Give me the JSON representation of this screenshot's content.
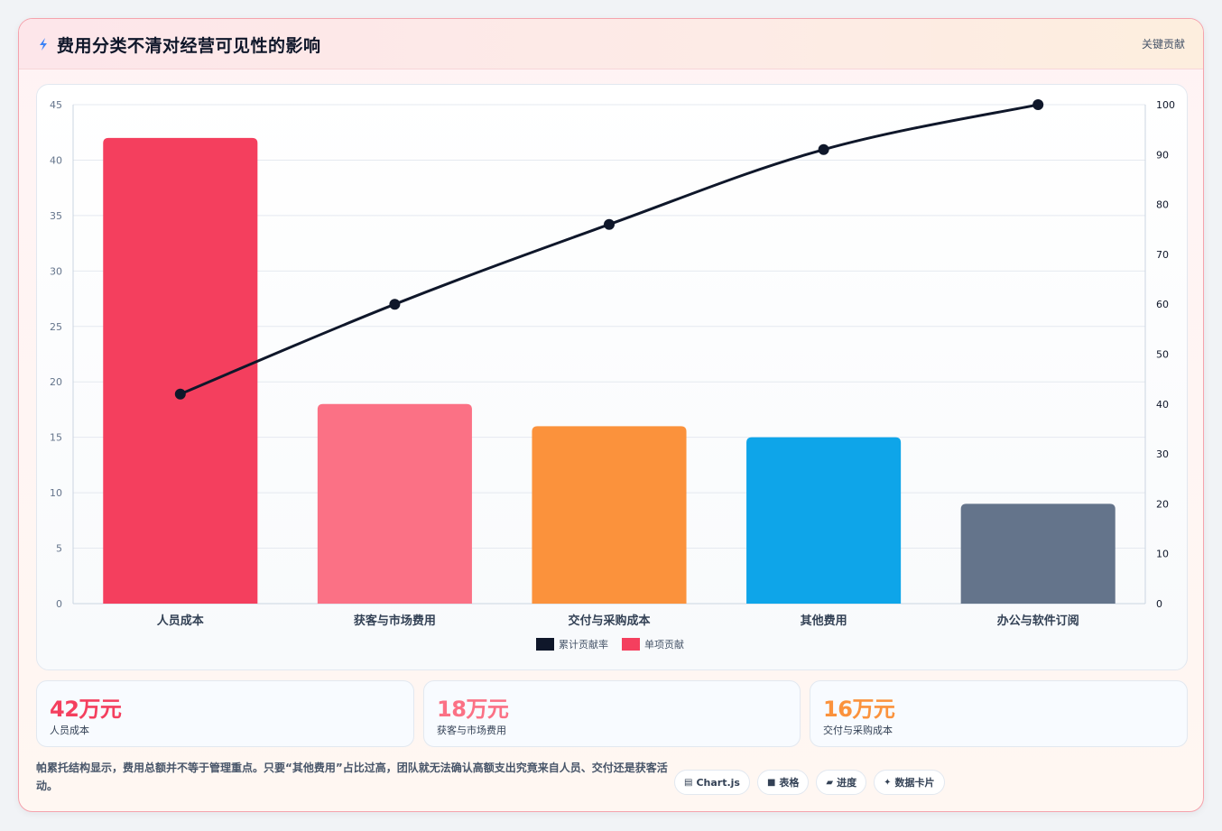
{
  "header": {
    "title": "费用分类不清对经营可见性的影响",
    "tag": "关键贡献",
    "icon": "bolt-icon"
  },
  "chart_data": {
    "type": "bar",
    "categories": [
      "人员成本",
      "获客与市场费用",
      "交付与采购成本",
      "其他费用",
      "办公与软件订阅"
    ],
    "series": [
      {
        "name": "单项贡献",
        "type": "bar",
        "axis": "left",
        "values": [
          42,
          18,
          16,
          15,
          9
        ],
        "colors": [
          "#f43f5e",
          "#fb7185",
          "#fb923c",
          "#0ea5e9",
          "#64748b"
        ]
      },
      {
        "name": "累计贡献率",
        "type": "line",
        "axis": "right",
        "values": [
          42,
          60,
          76,
          91,
          100
        ],
        "color": "#0f172a"
      }
    ],
    "y_left": {
      "min": 0,
      "max": 45,
      "ticks": [
        0,
        5,
        10,
        15,
        20,
        25,
        30,
        35,
        40,
        45
      ]
    },
    "y_right": {
      "min": 0,
      "max": 100,
      "ticks": [
        0,
        10,
        20,
        30,
        40,
        50,
        60,
        70,
        80,
        90,
        100
      ]
    },
    "legend": {
      "position": "bottom",
      "items": [
        {
          "label": "累计贡献率",
          "color": "#0f172a"
        },
        {
          "label": "单项贡献",
          "color": "#f43f5e"
        }
      ]
    },
    "grid": true
  },
  "kpis": [
    {
      "value": "42万元",
      "label": "人员成本",
      "color": "#f43f5e"
    },
    {
      "value": "18万元",
      "label": "获客与市场费用",
      "color": "#fb7185"
    },
    {
      "value": "16万元",
      "label": "交付与采购成本",
      "color": "#fb923c"
    }
  ],
  "note": "帕累托结构显示，费用总额并不等于管理重点。只要“其他费用”占比过高，团队就无法确认高额支出究竟来自人员、交付还是获客活动。",
  "chips": [
    {
      "icon": "chart-icon",
      "glyph": "▤",
      "label": "Chart.js"
    },
    {
      "icon": "table-icon",
      "glyph": "■",
      "label": "表格"
    },
    {
      "icon": "progress-icon",
      "glyph": "▰",
      "label": "进度"
    },
    {
      "icon": "sparkle-icon",
      "glyph": "✦",
      "label": "数据卡片"
    }
  ]
}
